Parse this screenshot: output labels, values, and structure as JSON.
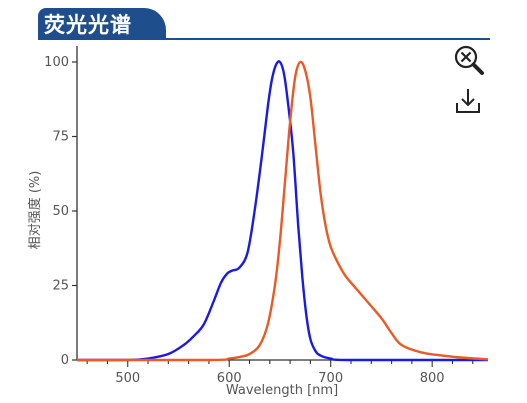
{
  "header": {
    "title": "荧光光谱"
  },
  "toolbar": {
    "zoom_icon": "zoom-reset-icon",
    "download_icon": "download-icon"
  },
  "colors": {
    "header": "#1f4e8c",
    "excitation": "#1a1ae6",
    "emission": "#ea5a24",
    "axis": "#333333"
  },
  "chart_data": {
    "type": "line",
    "xlabel": "Wavelength [nm]",
    "ylabel": "相对强度 (%)",
    "xlim": [
      450,
      855
    ],
    "ylim": [
      0,
      100
    ],
    "xticks": [
      500,
      600,
      700,
      800
    ],
    "yticks": [
      0,
      25,
      50,
      75,
      100
    ],
    "series": [
      {
        "color": "#1a1ae6",
        "x": [
          450,
          500,
          520,
          540,
          555,
          565,
          575,
          585,
          592,
          598,
          603,
          610,
          618,
          625,
          632,
          638,
          642,
          646,
          650,
          654,
          658,
          663,
          668,
          672,
          676,
          680,
          685,
          690,
          700,
          720,
          855
        ],
        "y": [
          0,
          0,
          0.5,
          2,
          5,
          8,
          12,
          20,
          26,
          29,
          30,
          31,
          36,
          50,
          68,
          85,
          94,
          99,
          100,
          96,
          86,
          70,
          45,
          28,
          15,
          7,
          3,
          1.5,
          0.5,
          0,
          0
        ]
      },
      {
        "color": "#ea5a24",
        "x": [
          450,
          580,
          600,
          610,
          620,
          630,
          638,
          645,
          650,
          655,
          660,
          665,
          670,
          675,
          680,
          685,
          690,
          695,
          700,
          708,
          715,
          725,
          735,
          750,
          760,
          770,
          790,
          810,
          830,
          855
        ],
        "y": [
          0,
          0,
          0.5,
          1,
          2,
          5,
          12,
          25,
          40,
          60,
          80,
          95,
          100,
          97,
          88,
          72,
          56,
          45,
          38,
          32,
          28,
          24,
          20,
          14,
          9,
          5,
          2.5,
          1.5,
          0.8,
          0.2
        ]
      }
    ]
  }
}
